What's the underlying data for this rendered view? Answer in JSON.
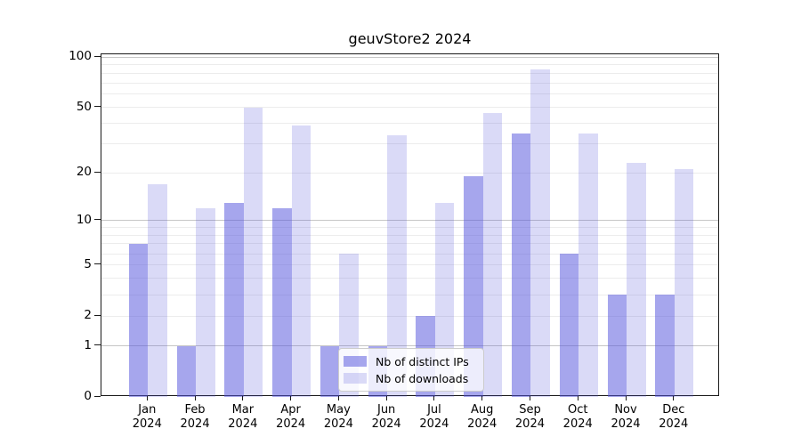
{
  "title": "geuvStore2 2024",
  "chart_data": {
    "type": "bar",
    "title": "geuvStore2 2024",
    "categories": [
      "Jan",
      "Feb",
      "Mar",
      "Apr",
      "May",
      "Jun",
      "Jul",
      "Aug",
      "Sep",
      "Oct",
      "Nov",
      "Dec"
    ],
    "year": "2024",
    "series": [
      {
        "name": "Nb of distinct IPs",
        "short": "distinct-ips",
        "color": "#a5a5ec",
        "color_rgba": "rgba(85,85,220,0.52)",
        "values": [
          7,
          1,
          13,
          12,
          1,
          1,
          2,
          19,
          35,
          6,
          3,
          3
        ]
      },
      {
        "name": "Nb of downloads",
        "short": "downloads",
        "color": "#d9d9f7",
        "color_rgba": "rgba(85,85,220,0.22)",
        "values": [
          17,
          12,
          50,
          39,
          6,
          34,
          13,
          46,
          84,
          35,
          23,
          21
        ]
      }
    ],
    "xlabel": "",
    "ylabel": "",
    "yscale": "log1p",
    "ylim": [
      0,
      104
    ],
    "yticks": [
      0,
      1,
      2,
      5,
      10,
      20,
      50,
      100
    ],
    "grid_major": [
      1,
      10,
      100
    ],
    "grid_minor": [
      2,
      3,
      4,
      5,
      6,
      7,
      8,
      9,
      20,
      30,
      40,
      50,
      60,
      70,
      80,
      90
    ],
    "grid": true,
    "legend_position": "inside-bottom-center"
  }
}
